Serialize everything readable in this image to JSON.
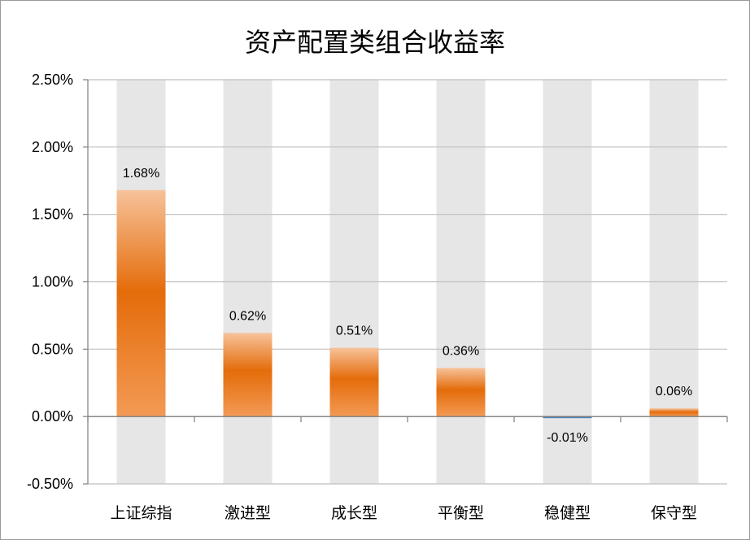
{
  "chart_data": {
    "type": "bar",
    "title": "资产配置类组合收益率",
    "categories": [
      "上证综指",
      "激进型",
      "成长型",
      "平衡型",
      "稳健型",
      "保守型"
    ],
    "values": [
      1.68,
      0.62,
      0.51,
      0.36,
      -0.01,
      0.06
    ],
    "data_labels": [
      "1.68%",
      "0.62%",
      "0.51%",
      "0.36%",
      "-0.01%",
      "0.06%"
    ],
    "y_ticks": [
      -0.5,
      0,
      0.5,
      1.0,
      1.5,
      2.0,
      2.5
    ],
    "y_tick_labels": [
      "-0.50%",
      "0.00%",
      "0.50%",
      "1.00%",
      "1.50%",
      "2.00%",
      "2.50%"
    ],
    "ylim": [
      -0.5,
      2.5
    ],
    "grid": true,
    "background_bars": true,
    "colors": {
      "positive_light": "#f6b889",
      "positive_dark": "#e46c0a",
      "negative": "#4f81bd",
      "background_bar": "#e6e6e6",
      "grid": "#bfbfbf",
      "axis": "#7f7f7f"
    }
  }
}
